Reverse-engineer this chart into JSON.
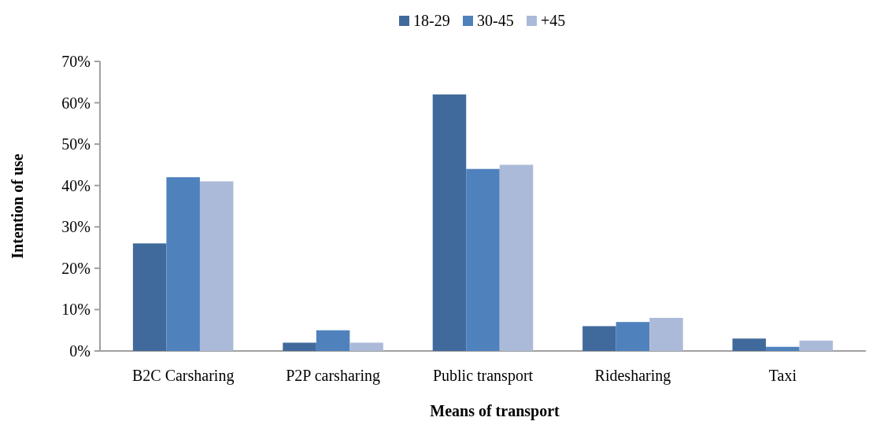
{
  "chart_data": {
    "type": "bar",
    "xlabel": "Means of transport",
    "ylabel": "Intention of use",
    "categories": [
      "B2C Carsharing",
      "P2P carsharing",
      "Public transport",
      "Ridesharing",
      "Taxi"
    ],
    "series": [
      {
        "name": "18-29",
        "color": "#416a9c",
        "values": [
          26,
          2,
          62,
          6,
          3
        ]
      },
      {
        "name": "30-45",
        "color": "#4f81bd",
        "values": [
          42,
          5,
          44,
          7,
          1
        ]
      },
      {
        "name": "+45",
        "color": "#abbad8",
        "values": [
          41,
          2,
          45,
          8,
          2.5
        ]
      }
    ],
    "ylim": [
      0,
      70
    ],
    "yticks": [
      {
        "value": 0,
        "label": "0%"
      },
      {
        "value": 10,
        "label": "10%"
      },
      {
        "value": 20,
        "label": "20%"
      },
      {
        "value": 30,
        "label": "30%"
      },
      {
        "value": 40,
        "label": "40%"
      },
      {
        "value": 50,
        "label": "50%"
      },
      {
        "value": 60,
        "label": "60%"
      },
      {
        "value": 70,
        "label": "70%"
      }
    ],
    "legend": "top"
  }
}
